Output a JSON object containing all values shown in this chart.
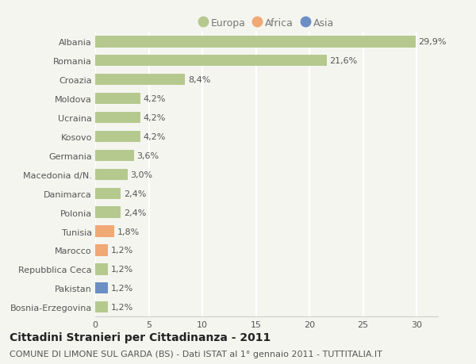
{
  "categories": [
    "Albania",
    "Romania",
    "Croazia",
    "Moldova",
    "Ucraina",
    "Kosovo",
    "Germania",
    "Macedonia d/N.",
    "Danimarca",
    "Polonia",
    "Tunisia",
    "Marocco",
    "Repubblica Ceca",
    "Pakistan",
    "Bosnia-Erzegovina"
  ],
  "values": [
    29.9,
    21.6,
    8.4,
    4.2,
    4.2,
    4.2,
    3.6,
    3.0,
    2.4,
    2.4,
    1.8,
    1.2,
    1.2,
    1.2,
    1.2
  ],
  "labels": [
    "29,9%",
    "21,6%",
    "8,4%",
    "4,2%",
    "4,2%",
    "4,2%",
    "3,6%",
    "3,0%",
    "2,4%",
    "2,4%",
    "1,8%",
    "1,2%",
    "1,2%",
    "1,2%",
    "1,2%"
  ],
  "colors": [
    "#b5c98e",
    "#b5c98e",
    "#b5c98e",
    "#b5c98e",
    "#b5c98e",
    "#b5c98e",
    "#b5c98e",
    "#b5c98e",
    "#b5c98e",
    "#b5c98e",
    "#f0a875",
    "#f0a875",
    "#b5c98e",
    "#6b8fc4",
    "#b5c98e"
  ],
  "legend_labels": [
    "Europa",
    "Africa",
    "Asia"
  ],
  "legend_colors": [
    "#b5c98e",
    "#f0a875",
    "#6b8fc4"
  ],
  "xlim": [
    0,
    32
  ],
  "xticks": [
    0,
    5,
    10,
    15,
    20,
    25,
    30
  ],
  "title": "Cittadini Stranieri per Cittadinanza - 2011",
  "subtitle": "COMUNE DI LIMONE SUL GARDA (BS) - Dati ISTAT al 1° gennaio 2011 - TUTTITALIA.IT",
  "background_color": "#f5f5f0",
  "grid_color": "#ffffff",
  "bar_height": 0.6,
  "title_fontsize": 10,
  "subtitle_fontsize": 8,
  "label_fontsize": 8,
  "tick_fontsize": 8,
  "legend_fontsize": 9
}
